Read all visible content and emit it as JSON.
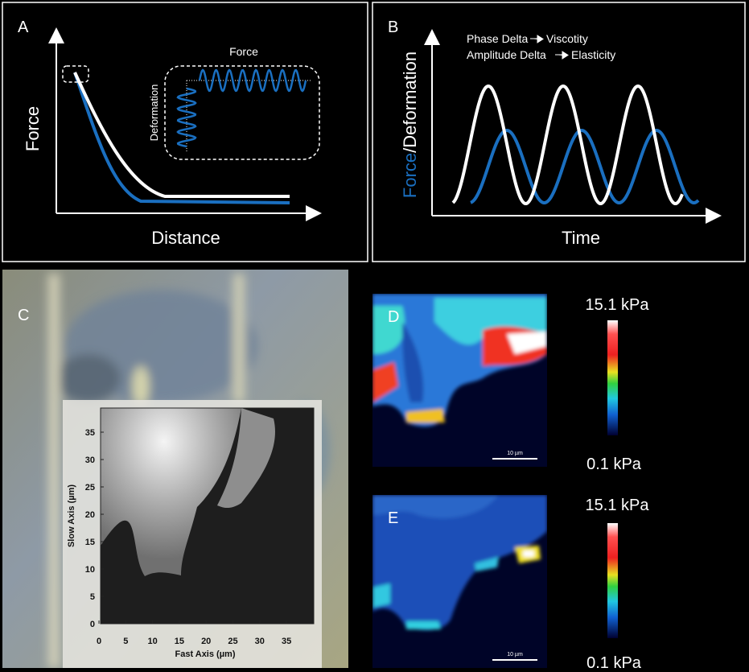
{
  "panels": {
    "a": {
      "label": "A",
      "y_axis": "Force",
      "x_axis": "Distance",
      "inset_x": "Force",
      "inset_y": "Deformation"
    },
    "b": {
      "label": "B",
      "y_axis_force": "Force",
      "y_axis_deformation": "/Deformation",
      "x_axis": "Time",
      "phase": "Phase Delta",
      "viscosity": "Viscotity",
      "amplitude": "Amplitude Delta",
      "elasticity": "Elasticity"
    },
    "c": {
      "label": "C",
      "y_axis": "Slow Axis (µm)",
      "x_axis": "Fast Axis  (µm)",
      "xticks": [
        0,
        5,
        10,
        15,
        20,
        25,
        30,
        35
      ],
      "yticks": [
        0,
        5,
        10,
        15,
        20,
        25,
        30,
        35
      ]
    },
    "d": {
      "label": "D",
      "max": "15.1 kPa",
      "min": "0.1 kPa",
      "scale_bar": "10 µm"
    },
    "e": {
      "label": "E",
      "max": "15.1 kPa",
      "min": "0.1 kPa",
      "scale_bar": "10 µm"
    }
  }
}
